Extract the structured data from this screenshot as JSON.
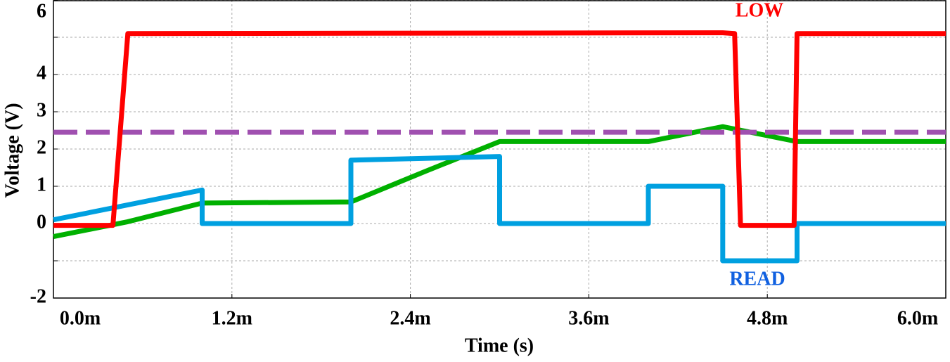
{
  "chart_data": {
    "type": "line",
    "x_label": "Time (s)",
    "y_label": "Voltage (V)",
    "xlim": [
      0,
      0.006
    ],
    "ylim": [
      -2,
      6
    ],
    "xticks": [
      {
        "value": 0,
        "label": "0.0m"
      },
      {
        "value": 0.0012,
        "label": "1.2m"
      },
      {
        "value": 0.0024,
        "label": "2.4m"
      },
      {
        "value": 0.0036,
        "label": "3.6m"
      },
      {
        "value": 0.0048,
        "label": "4.8m"
      },
      {
        "value": 0.006,
        "label": "6.0m"
      }
    ],
    "yticks": [
      {
        "value": -2,
        "label": "-2"
      },
      {
        "value": -1,
        "label": null
      },
      0,
      1,
      2,
      3,
      4,
      {
        "value": 5,
        "label": null
      },
      6
    ],
    "grid": true,
    "series": [
      {
        "name": "LOW",
        "color": "#ff0000",
        "x": [
          0,
          0.0004,
          0.0005,
          0.0045,
          0.00458,
          0.00462,
          0.00498,
          0.005,
          0.006
        ],
        "values": [
          -0.05,
          -0.05,
          5.1,
          5.12,
          5.1,
          -0.05,
          -0.05,
          5.1,
          5.1
        ]
      },
      {
        "name": "READ",
        "color": "#00a0e0",
        "x": [
          0,
          0.001,
          0.001,
          0.002,
          0.002,
          0.003,
          0.003,
          0.004,
          0.004,
          0.0045,
          0.0045,
          0.005,
          0.005,
          0.006
        ],
        "values": [
          0.1,
          0.9,
          0,
          0,
          1.7,
          1.8,
          0,
          0,
          1.0,
          1.0,
          -1.0,
          -1.0,
          0,
          0
        ]
      },
      {
        "color": "#00b000",
        "x": [
          0,
          0.0005,
          0.001,
          0.002,
          0.0025,
          0.003,
          0.004,
          0.0045,
          0.005,
          0.006
        ],
        "values": [
          -0.35,
          0.05,
          0.55,
          0.58,
          1.4,
          2.2,
          2.2,
          2.6,
          2.2,
          2.2
        ]
      },
      {
        "color": "#a050b0",
        "dashed": true,
        "x": [
          0,
          0.006
        ],
        "values": [
          2.45,
          2.45
        ]
      }
    ]
  }
}
